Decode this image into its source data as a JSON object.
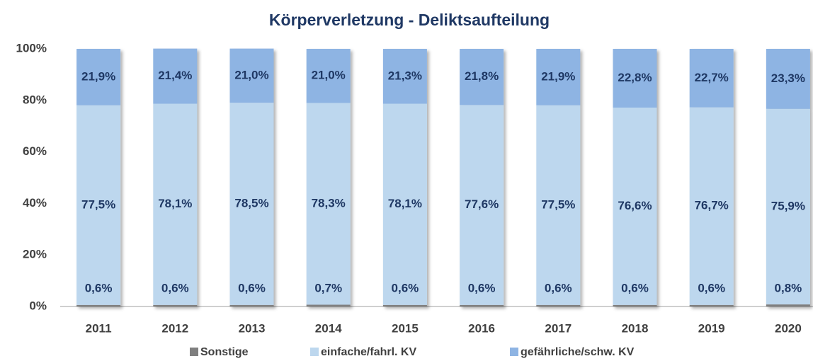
{
  "chart_data": {
    "type": "stacked_bar",
    "title": "Körperverletzung - Deliktsaufteilung",
    "categories": [
      "2011",
      "2012",
      "2013",
      "2014",
      "2015",
      "2016",
      "2017",
      "2018",
      "2019",
      "2020"
    ],
    "series": [
      {
        "name": "Sonstige",
        "color": "#7f7f7f",
        "values": [
          0.6,
          0.6,
          0.6,
          0.7,
          0.6,
          0.6,
          0.6,
          0.6,
          0.6,
          0.8
        ],
        "value_labels": [
          "0,6%",
          "0,6%",
          "0,6%",
          "0,7%",
          "0,6%",
          "0,6%",
          "0,6%",
          "0,6%",
          "0,6%",
          "0,8%"
        ]
      },
      {
        "name": "einfache/fahrl. KV",
        "color": "#bdd7ee",
        "values": [
          77.5,
          78.1,
          78.5,
          78.3,
          78.1,
          77.6,
          77.5,
          76.6,
          76.7,
          75.9
        ],
        "value_labels": [
          "77,5%",
          "78,1%",
          "78,5%",
          "78,3%",
          "78,1%",
          "77,6%",
          "77,5%",
          "76,6%",
          "76,7%",
          "75,9%"
        ]
      },
      {
        "name": "gefährliche/schw. KV",
        "color": "#8eb4e3",
        "values": [
          21.9,
          21.4,
          21.0,
          21.0,
          21.3,
          21.8,
          21.9,
          22.8,
          22.7,
          23.3
        ],
        "value_labels": [
          "21,9%",
          "21,4%",
          "21,0%",
          "21,0%",
          "21,3%",
          "21,8%",
          "21,9%",
          "22,8%",
          "22,7%",
          "23,3%"
        ]
      }
    ],
    "ylim": [
      0,
      100
    ],
    "yticks": [
      {
        "value": 0,
        "label": "0%"
      },
      {
        "value": 20,
        "label": "20%"
      },
      {
        "value": 40,
        "label": "40%"
      },
      {
        "value": 60,
        "label": "60%"
      },
      {
        "value": 80,
        "label": "80%"
      },
      {
        "value": 100,
        "label": "100%"
      }
    ],
    "grid": false
  }
}
